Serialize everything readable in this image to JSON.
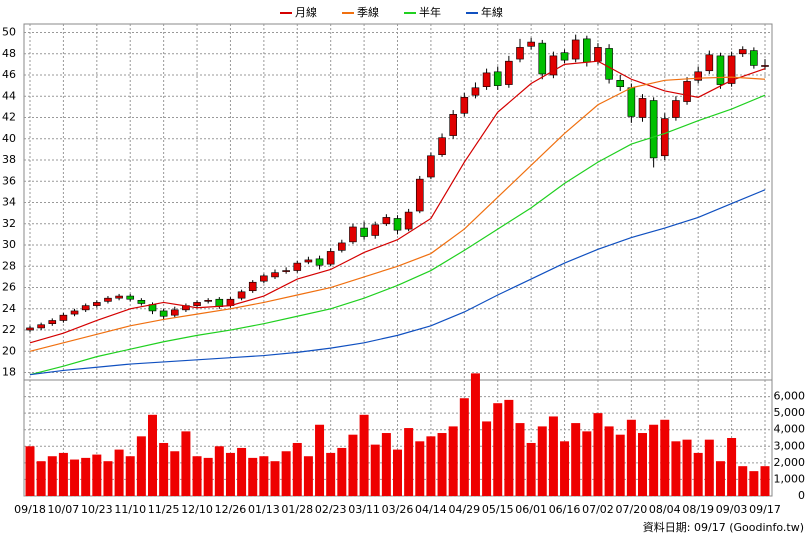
{
  "chart_data": {
    "type": "candlestick",
    "legend_position": "top",
    "grid": true,
    "up_color": "#e00000",
    "down_color": "#00c000",
    "categories": [
      "09/18",
      null,
      null,
      "10/07",
      null,
      null,
      "10/23",
      null,
      null,
      "11/10",
      null,
      null,
      "11/25",
      null,
      null,
      "12/10",
      null,
      null,
      "12/26",
      null,
      null,
      "01/13",
      null,
      null,
      "01/28",
      null,
      null,
      "02/23",
      null,
      null,
      "03/11",
      null,
      null,
      "03/26",
      null,
      null,
      "04/14",
      null,
      null,
      "04/29",
      null,
      null,
      "05/15",
      null,
      null,
      "06/01",
      null,
      null,
      "06/16",
      null,
      null,
      "07/02",
      null,
      null,
      "07/20",
      null,
      null,
      "08/04",
      null,
      null,
      "08/19",
      null,
      null,
      "09/03",
      null,
      null,
      "09/17"
    ],
    "open": [
      22.0,
      22.2,
      22.6,
      22.9,
      23.5,
      23.9,
      24.3,
      24.7,
      25.0,
      25.2,
      24.8,
      24.4,
      23.8,
      23.4,
      23.9,
      24.3,
      24.7,
      24.9,
      24.3,
      25.0,
      25.7,
      26.6,
      27.0,
      27.5,
      27.6,
      28.4,
      28.7,
      28.2,
      29.5,
      30.3,
      31.6,
      30.9,
      32.0,
      32.5,
      31.5,
      33.2,
      36.4,
      38.5,
      40.3,
      42.4,
      44.1,
      44.9,
      46.3,
      45.1,
      47.5,
      48.7,
      49.0,
      46.0,
      48.1,
      47.5,
      49.4,
      47.3,
      48.5,
      45.5,
      44.8,
      42.0,
      43.6,
      38.4,
      42.0,
      43.5,
      45.5,
      46.4,
      47.8,
      45.2,
      48.0,
      48.3,
      46.8
    ],
    "high": [
      22.4,
      22.7,
      23.1,
      23.6,
      24.0,
      24.5,
      24.8,
      25.2,
      25.4,
      25.4,
      25.0,
      24.6,
      24.0,
      24.2,
      24.5,
      24.8,
      25.0,
      25.1,
      25.1,
      25.8,
      26.7,
      27.3,
      27.7,
      27.9,
      28.5,
      28.9,
      29.0,
      29.7,
      30.5,
      32.0,
      32.2,
      32.2,
      32.9,
      32.8,
      33.4,
      36.5,
      38.7,
      40.5,
      42.7,
      44.3,
      45.3,
      46.6,
      46.8,
      47.8,
      49.4,
      49.5,
      49.3,
      48.2,
      48.4,
      49.8,
      49.7,
      49.0,
      48.9,
      46.0,
      45.2,
      44.2,
      43.9,
      42.4,
      44.0,
      45.8,
      46.8,
      48.3,
      48.1,
      48.2,
      48.7,
      48.6,
      47.5
    ],
    "low": [
      21.8,
      22.0,
      22.4,
      22.7,
      23.3,
      23.7,
      24.1,
      24.5,
      24.8,
      24.7,
      24.3,
      23.5,
      23.0,
      23.2,
      23.7,
      24.1,
      24.5,
      24.0,
      24.1,
      24.8,
      25.5,
      26.4,
      26.8,
      27.3,
      27.4,
      28.2,
      27.7,
      28.0,
      29.3,
      30.1,
      30.5,
      30.6,
      31.8,
      31.0,
      31.3,
      33.0,
      36.2,
      38.3,
      40.0,
      42.1,
      43.8,
      44.6,
      44.6,
      44.8,
      47.2,
      48.4,
      45.6,
      45.7,
      47.1,
      47.2,
      46.8,
      47.0,
      45.2,
      44.5,
      41.5,
      41.6,
      37.3,
      38.0,
      41.7,
      43.2,
      45.2,
      46.1,
      44.7,
      44.9,
      47.7,
      46.6,
      46.5
    ],
    "close": [
      22.2,
      22.5,
      22.9,
      23.4,
      23.8,
      24.3,
      24.6,
      25.0,
      25.2,
      24.9,
      24.5,
      23.8,
      23.3,
      23.9,
      24.3,
      24.6,
      24.8,
      24.2,
      24.9,
      25.6,
      26.5,
      27.1,
      27.4,
      27.6,
      28.3,
      28.6,
      28.1,
      29.4,
      30.2,
      31.7,
      30.8,
      31.9,
      32.6,
      31.4,
      33.1,
      36.2,
      38.4,
      40.1,
      42.3,
      43.9,
      44.8,
      46.2,
      45.0,
      47.3,
      48.6,
      49.1,
      46.1,
      47.8,
      47.4,
      49.3,
      47.2,
      48.6,
      45.6,
      44.9,
      42.1,
      43.8,
      38.2,
      41.9,
      43.6,
      45.4,
      46.3,
      47.9,
      45.1,
      47.8,
      48.4,
      46.9,
      46.9
    ],
    "ylim": [
      17.3,
      50.8
    ],
    "yticks": [
      18,
      20,
      22,
      24,
      26,
      28,
      30,
      32,
      34,
      36,
      38,
      40,
      42,
      44,
      46,
      48,
      50
    ],
    "series": [
      {
        "name": "月線",
        "color": "#d40000",
        "x": [
          0,
          3,
          6,
          9,
          12,
          15,
          18,
          21,
          24,
          27,
          30,
          33,
          36,
          39,
          42,
          45,
          48,
          51,
          54,
          57,
          60,
          63,
          66
        ],
        "values": [
          20.8,
          21.7,
          22.9,
          24.0,
          24.6,
          24.1,
          24.3,
          25.2,
          26.8,
          27.7,
          29.3,
          30.5,
          32.5,
          37.8,
          42.5,
          45.2,
          47.0,
          47.3,
          45.6,
          44.5,
          43.9,
          45.5,
          46.6
        ]
      },
      {
        "name": "季線",
        "color": "#f07010",
        "x": [
          0,
          3,
          6,
          9,
          12,
          15,
          18,
          21,
          24,
          27,
          30,
          33,
          36,
          39,
          42,
          45,
          48,
          51,
          54,
          57,
          60,
          63,
          66
        ],
        "values": [
          20.0,
          20.8,
          21.6,
          22.4,
          23.0,
          23.5,
          24.0,
          24.6,
          25.3,
          26.0,
          27.0,
          28.0,
          29.2,
          31.5,
          34.5,
          37.5,
          40.5,
          43.2,
          44.8,
          45.5,
          45.7,
          45.8,
          45.6
        ]
      },
      {
        "name": "半年",
        "color": "#20d020",
        "x": [
          0,
          3,
          6,
          9,
          12,
          15,
          18,
          21,
          24,
          27,
          30,
          33,
          36,
          39,
          42,
          45,
          48,
          51,
          54,
          57,
          60,
          63,
          66
        ],
        "values": [
          17.8,
          18.6,
          19.5,
          20.2,
          20.9,
          21.5,
          22.0,
          22.6,
          23.3,
          24.0,
          25.0,
          26.2,
          27.6,
          29.5,
          31.5,
          33.5,
          35.8,
          37.8,
          39.5,
          40.5,
          41.7,
          42.8,
          44.1
        ]
      },
      {
        "name": "年線",
        "color": "#1050c0",
        "x": [
          0,
          3,
          6,
          9,
          12,
          15,
          18,
          21,
          24,
          27,
          30,
          33,
          36,
          39,
          42,
          45,
          48,
          51,
          54,
          57,
          60,
          63,
          66
        ],
        "values": [
          17.8,
          18.2,
          18.5,
          18.8,
          19.0,
          19.2,
          19.4,
          19.6,
          19.9,
          20.3,
          20.8,
          21.5,
          22.4,
          23.7,
          25.3,
          26.8,
          28.3,
          29.6,
          30.7,
          31.6,
          32.6,
          33.9,
          35.2
        ]
      }
    ],
    "volume": {
      "color": "#ee0000",
      "values": [
        3000,
        2100,
        2400,
        2600,
        2200,
        2300,
        2500,
        2100,
        2800,
        2400,
        3600,
        4900,
        3200,
        2700,
        3900,
        2400,
        2300,
        3000,
        2600,
        2900,
        2300,
        2400,
        2100,
        2700,
        3200,
        2400,
        4300,
        2600,
        2900,
        3700,
        4900,
        3100,
        3800,
        2800,
        4100,
        3300,
        3600,
        3800,
        4200,
        5900,
        7400,
        4500,
        5600,
        5800,
        4400,
        3200,
        4200,
        4800,
        3300,
        4400,
        3900,
        5000,
        4200,
        3700,
        4600,
        3800,
        4300,
        4600,
        3300,
        3400,
        2600,
        3400,
        2100,
        3500,
        1800,
        1500,
        1800
      ],
      "ylim": [
        0,
        7000
      ],
      "yticks": [
        0,
        {
          "value": 1000,
          "label": "1,000"
        },
        {
          "value": 2000,
          "label": "2,000"
        },
        {
          "value": 3000,
          "label": "3,000"
        },
        {
          "value": 4000,
          "label": "4,000"
        },
        {
          "value": 5000,
          "label": "5,000"
        },
        {
          "value": 6000,
          "label": "6,000"
        }
      ]
    },
    "source_note": "資料日期: 09/17  (Goodinfo.tw)"
  }
}
